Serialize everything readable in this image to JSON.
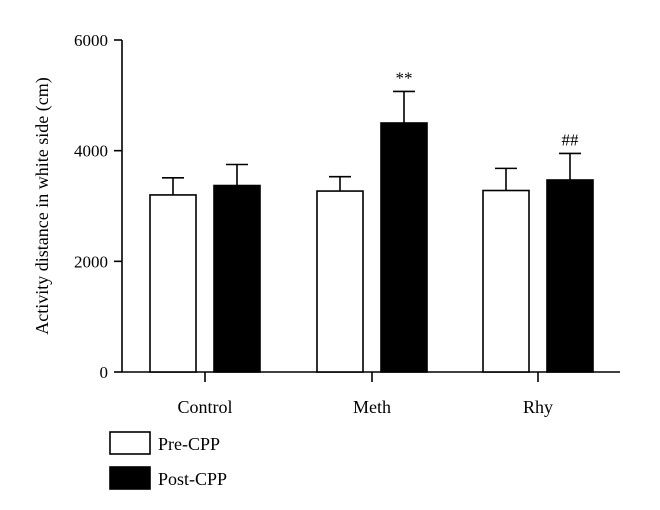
{
  "chart_data": {
    "type": "bar",
    "categories": [
      "Control",
      "Meth",
      "Rhy"
    ],
    "ylabel": "Activity distance in white side (cm)",
    "xlabel": "",
    "ylim": [
      0,
      6000
    ],
    "yticks": [
      0,
      2000,
      4000,
      6000
    ],
    "series": [
      {
        "name": "Pre-CPP",
        "fill": "#ffffff",
        "stroke": "#000000",
        "values": [
          3200,
          3270,
          3280
        ],
        "errors": [
          310,
          260,
          400
        ]
      },
      {
        "name": "Post-CPP",
        "fill": "#000000",
        "stroke": "#000000",
        "values": [
          3370,
          4500,
          3470
        ],
        "errors": [
          380,
          570,
          480
        ]
      }
    ],
    "annotations": [
      {
        "category": "Meth",
        "series": "Post-CPP",
        "text": "**"
      },
      {
        "category": "Rhy",
        "series": "Post-CPP",
        "text": "##"
      }
    ],
    "legend": {
      "position": "bottom-left"
    },
    "grid": false
  }
}
